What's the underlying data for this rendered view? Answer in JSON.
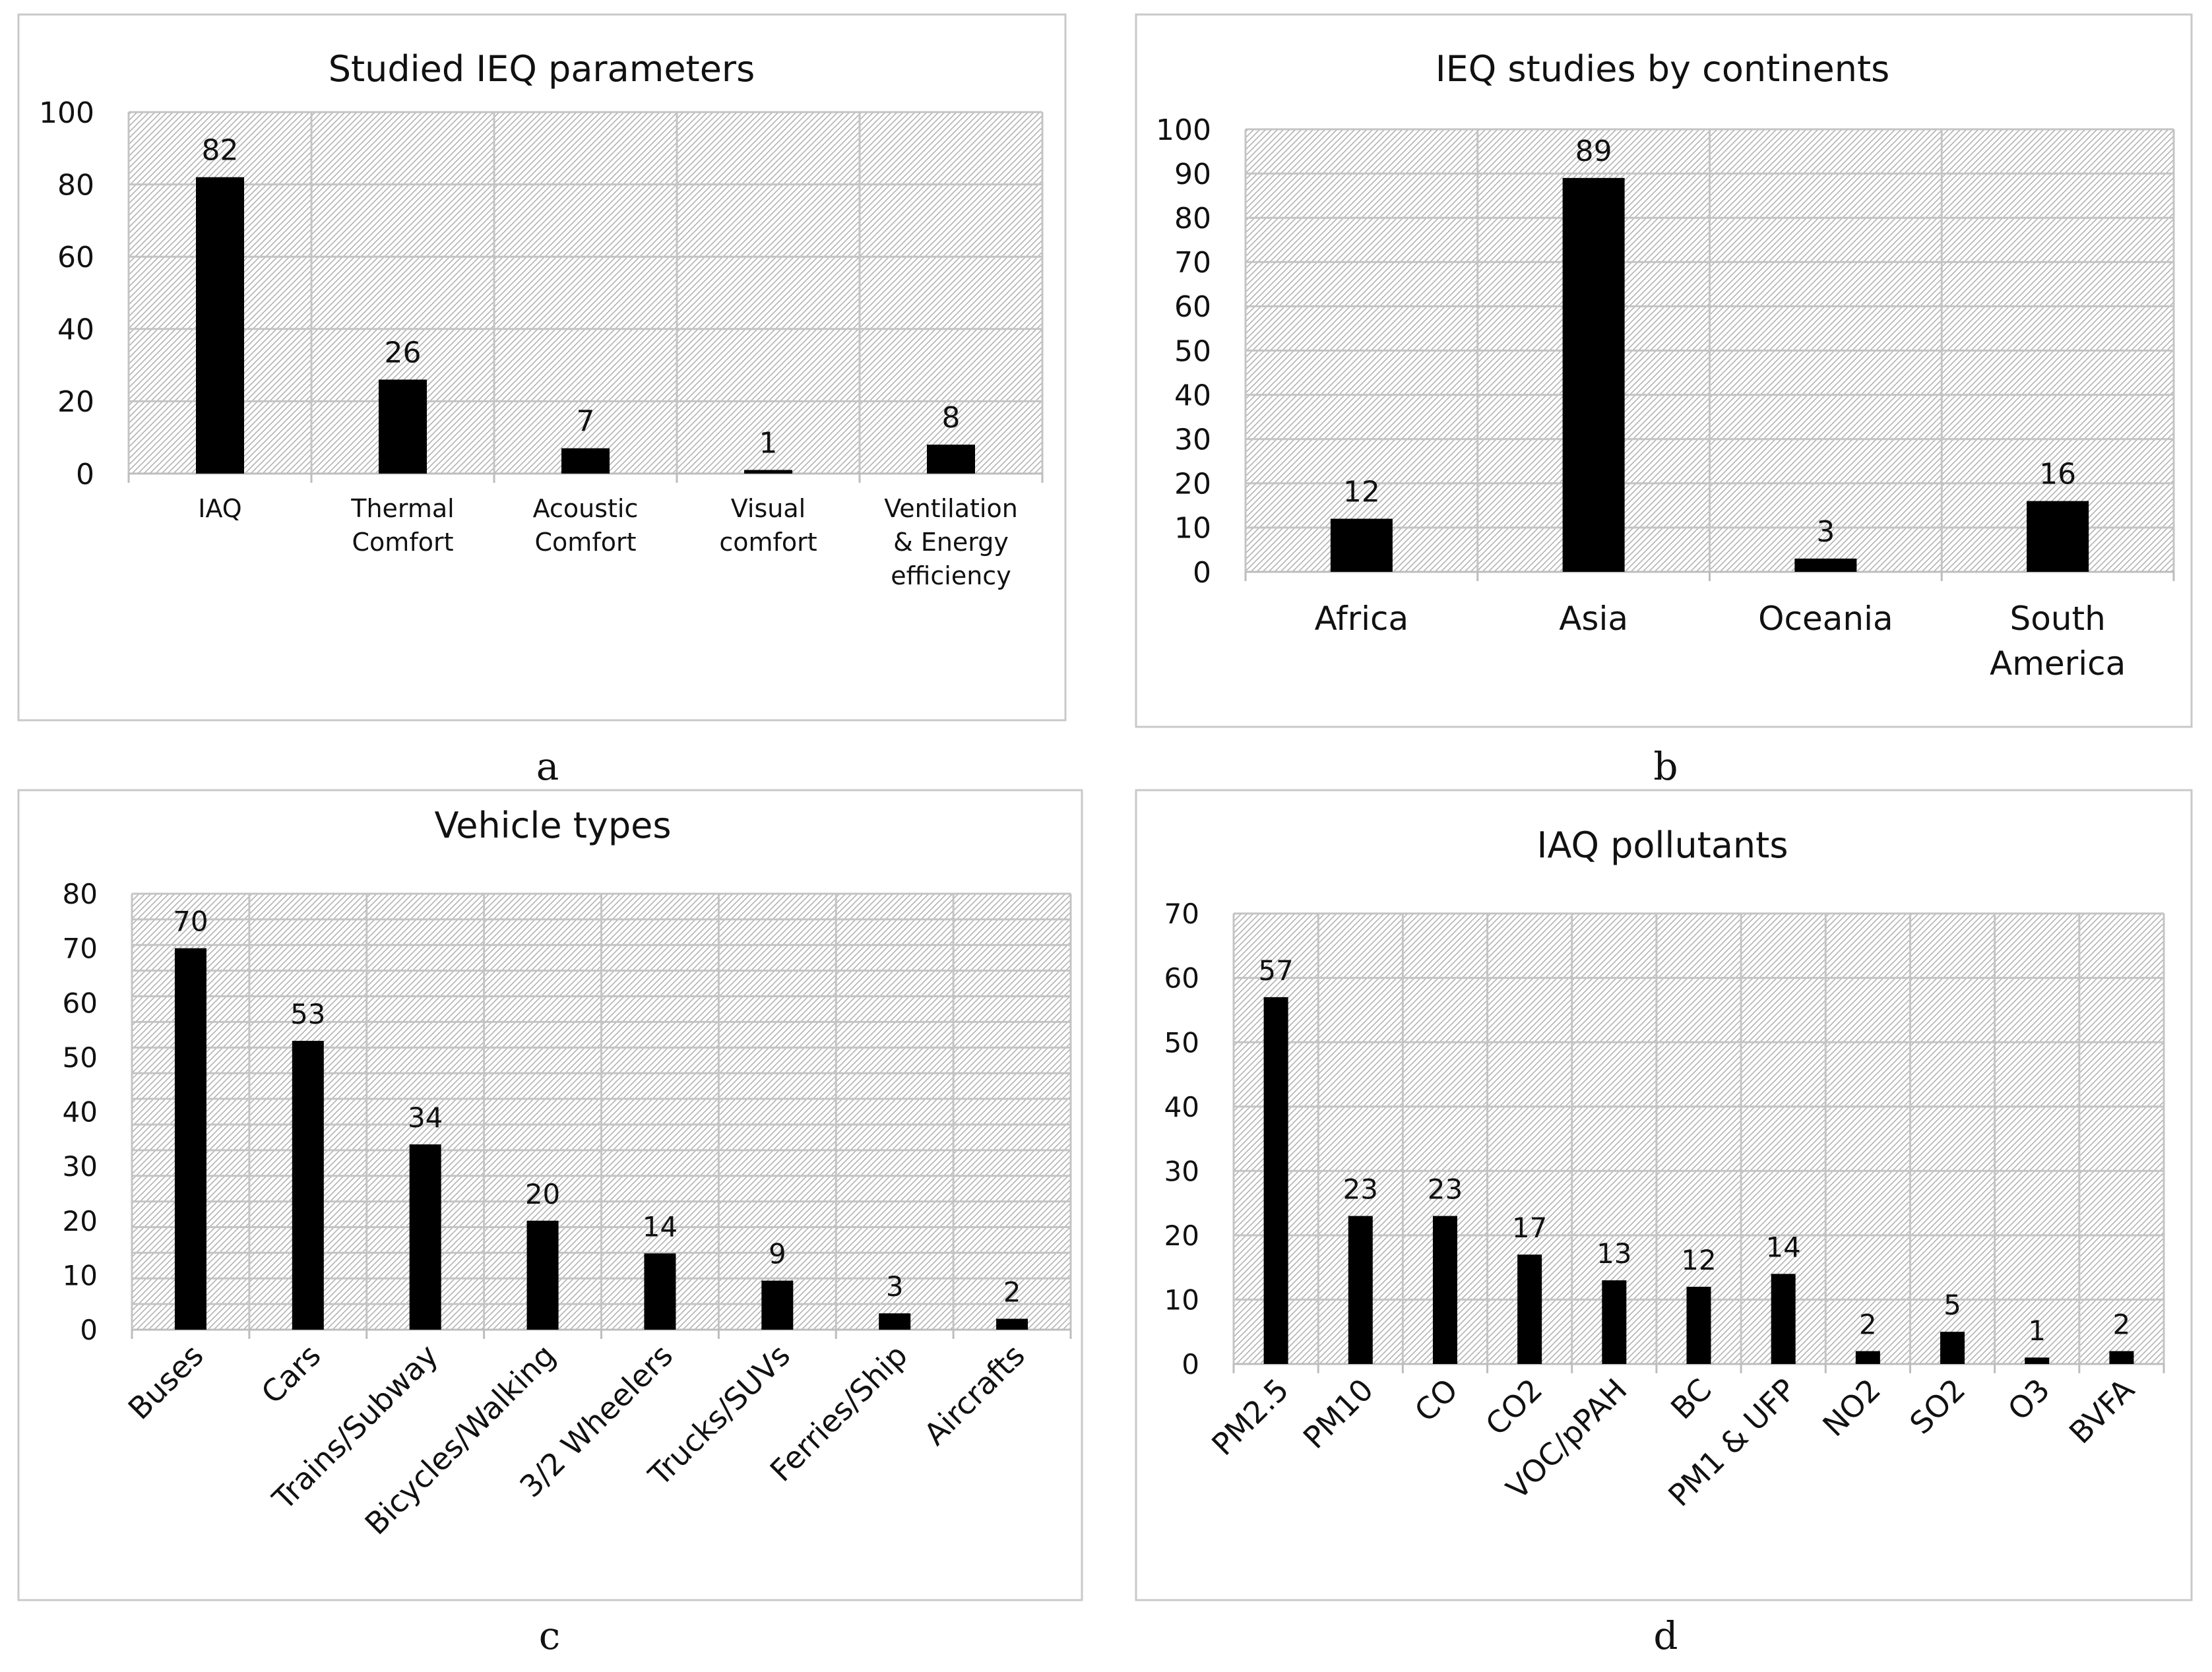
{
  "figure_labels": [
    "a",
    "b",
    "c",
    "d"
  ],
  "chart_data": [
    {
      "type": "bar",
      "title": "Studied IEQ parameters",
      "categories": [
        "IAQ",
        "Thermal Comfort",
        "Acoustic Comfort",
        "Visual comfort",
        "Ventilation & Energy efficiency"
      ],
      "category_lines": [
        [
          "IAQ"
        ],
        [
          "Thermal",
          "Comfort"
        ],
        [
          "Acoustic",
          "Comfort"
        ],
        [
          "Visual",
          "comfort"
        ],
        [
          "Ventilation",
          "& Energy",
          "efficiency"
        ]
      ],
      "values": [
        82,
        26,
        7,
        1,
        8
      ],
      "yticks": [
        0,
        20,
        40,
        60,
        80,
        100
      ],
      "ylim": [
        0,
        100
      ],
      "xlabel": "",
      "ylabel": "",
      "grid": true,
      "legend": "none"
    },
    {
      "type": "bar",
      "title": "IEQ studies by continents",
      "categories": [
        "Africa",
        "Asia",
        "Oceania",
        "South America"
      ],
      "category_lines": [
        [
          "Africa"
        ],
        [
          "Asia"
        ],
        [
          "Oceania"
        ],
        [
          "South",
          "America"
        ]
      ],
      "values": [
        12,
        89,
        3,
        16
      ],
      "yticks": [
        0,
        10,
        20,
        30,
        40,
        50,
        60,
        70,
        80,
        90,
        100
      ],
      "ylim": [
        0,
        100
      ],
      "xlabel": "",
      "ylabel": "",
      "grid": true,
      "legend": "none"
    },
    {
      "type": "bar",
      "title": "Vehicle types",
      "categories": [
        "Buses",
        "Cars",
        "Trains/Subway",
        "Bicycles/Walking",
        "3/2 Wheelers",
        "Trucks/SUVs",
        "Ferries/Ship",
        "Aircrafts"
      ],
      "values": [
        70,
        53,
        34,
        20,
        14,
        9,
        3,
        2
      ],
      "yticks": [
        0,
        10,
        20,
        30,
        40,
        50,
        60,
        70,
        80
      ],
      "ylim": [
        0,
        80
      ],
      "xlabel": "",
      "ylabel": "",
      "grid": true,
      "legend": "none"
    },
    {
      "type": "bar",
      "title": "IAQ pollutants",
      "categories": [
        "PM2.5",
        "PM10",
        "CO",
        "CO2",
        "VOC/pPAH",
        "BC",
        "PM1 & UFP",
        "NO2",
        "SO2",
        "O3",
        "BVFA"
      ],
      "values": [
        57,
        23,
        23,
        17,
        13,
        12,
        14,
        2,
        5,
        1,
        2
      ],
      "yticks": [
        0,
        10,
        20,
        30,
        40,
        50,
        60,
        70
      ],
      "ylim": [
        0,
        70
      ],
      "xlabel": "",
      "ylabel": "",
      "grid": true,
      "legend": "none"
    }
  ]
}
